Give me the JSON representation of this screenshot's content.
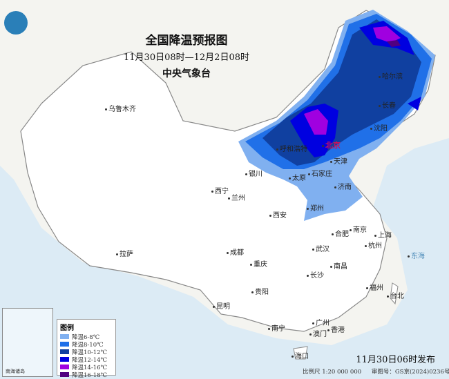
{
  "title": "全国降温预报图",
  "period": "11月30日08时—12月2日08时",
  "issuer": "中央气象台",
  "logo_icon": "cma-logo",
  "legend": {
    "title": "图例",
    "items": [
      {
        "label": "降温6-8℃",
        "color": "#80b0f0"
      },
      {
        "label": "降温8-10℃",
        "color": "#2070e8"
      },
      {
        "label": "降温10-12℃",
        "color": "#1040a0"
      },
      {
        "label": "降温12-14℃",
        "color": "#0000e0"
      },
      {
        "label": "降温14-16℃",
        "color": "#a000e0"
      },
      {
        "label": "降温16-18℃",
        "color": "#500080"
      }
    ]
  },
  "inset_label": "南海诸岛",
  "cities": [
    "乌鲁木齐",
    "哈尔滨",
    "长春",
    "沈阳",
    "呼和浩特",
    "北京",
    "天津",
    "银川",
    "太原",
    "石家庄",
    "济南",
    "西宁",
    "兰州",
    "郑州",
    "西安",
    "合肥",
    "南京",
    "上海",
    "武汉",
    "杭州",
    "成都",
    "拉萨",
    "重庆",
    "南昌",
    "长沙",
    "福州",
    "台北",
    "贵阳",
    "昆明",
    "广州",
    "香港",
    "澳门",
    "南宁",
    "海口"
  ],
  "sea_labels": [
    "东海"
  ],
  "issue_time": "11月30日06时发布",
  "footer": {
    "scale": "比例尺 1:20 000 000",
    "review": "审图号：GS京(2024)0236号"
  }
}
